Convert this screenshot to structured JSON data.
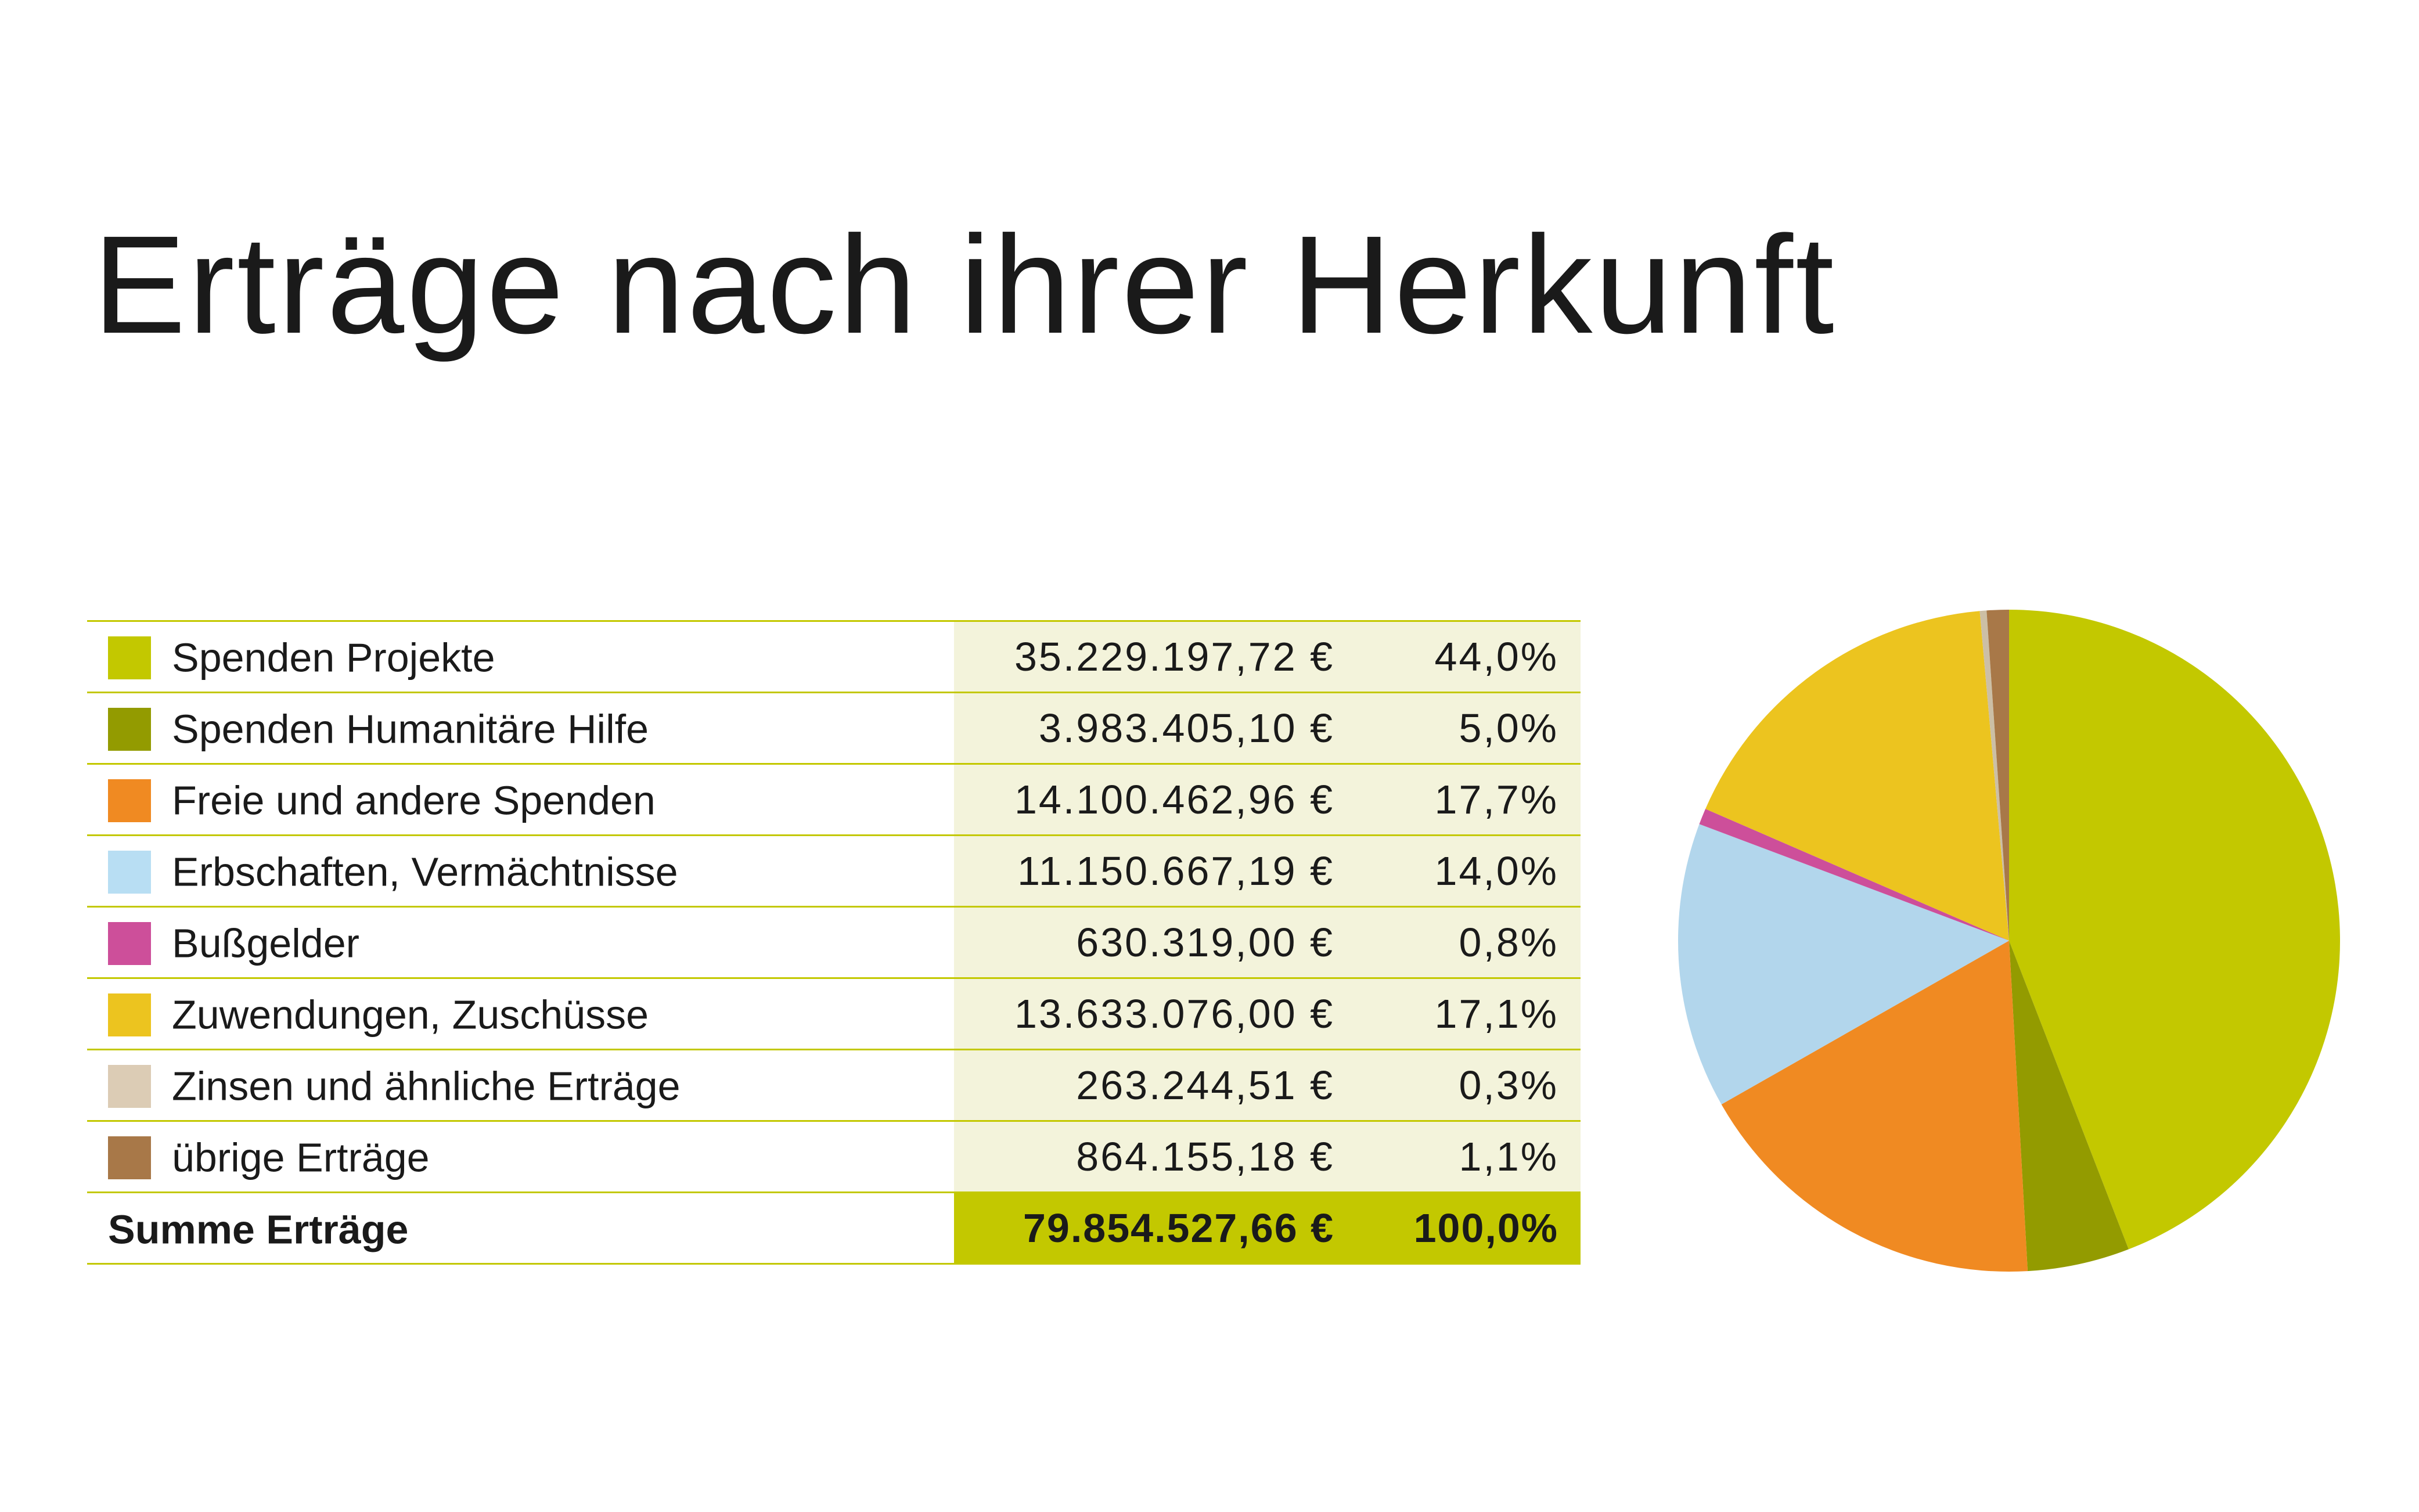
{
  "title": "Erträge nach ihrer Herkunft",
  "table": {
    "rows": [
      {
        "label": "Spenden Projekte",
        "amount": "35.229.197,72 €",
        "percent": "44,0%",
        "color": "#c3c800"
      },
      {
        "label": "Spenden Humanitäre Hilfe",
        "amount": "3.983.405,10 €",
        "percent": "5,0%",
        "color": "#939b00"
      },
      {
        "label": "Freie und andere Spenden",
        "amount": "14.100.462,96 €",
        "percent": "17,7%",
        "color": "#f08a22"
      },
      {
        "label": "Erbschaften, Vermächtnisse",
        "amount": "11.150.667,19 €",
        "percent": "14,0%",
        "color": "#b8def3"
      },
      {
        "label": "Bußgelder",
        "amount": "630.319,00 €",
        "percent": "0,8%",
        "color": "#cd4f9a"
      },
      {
        "label": "Zuwendungen, Zuschüsse",
        "amount": "13.633.076,00 €",
        "percent": "17,1%",
        "color": "#ecc41f"
      },
      {
        "label": "Zinsen und ähnliche Erträge",
        "amount": "263.244,51 €",
        "percent": "0,3%",
        "color": "#dcccb5"
      },
      {
        "label": "übrige Erträge",
        "amount": "864.155,18 €",
        "percent": "1,1%",
        "color": "#a87848"
      }
    ],
    "total": {
      "label": "Summe Erträge",
      "amount": "79.854.527,66 €",
      "percent": "100,0%"
    }
  },
  "colors": {
    "accent": "#c3c800",
    "cell_background": "#f3f3db"
  },
  "chart_data": {
    "type": "pie",
    "start": "12 o'clock, clockwise",
    "categories": [
      "Spenden Projekte",
      "Spenden Humanitäre Hilfe",
      "Freie und andere Spenden",
      "Erbschaften, Vermächtnisse",
      "Bußgelder",
      "Zuwendungen, Zuschüsse",
      "Zinsen und ähnliche Erträge",
      "übrige Erträge"
    ],
    "values": [
      35229197.72,
      3983405.1,
      14100462.96,
      11150667.19,
      630319.0,
      13633076.0,
      263244.51,
      864155.18
    ],
    "colors": [
      "#c3c800",
      "#939b00",
      "#f08a22",
      "#b2d6ec",
      "#cd4f9a",
      "#ecc41f",
      "#ccbfa5",
      "#a87848"
    ]
  }
}
